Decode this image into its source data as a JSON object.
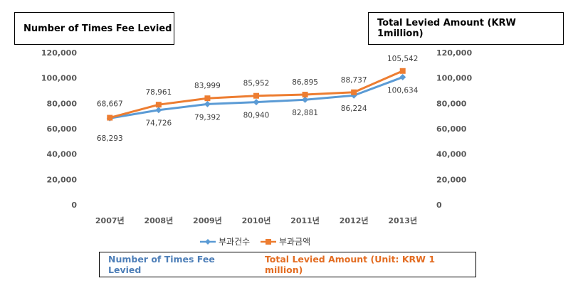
{
  "boxes": {
    "left_axis_title": "Number of Times Fee Levied",
    "right_axis_title": "Total Levied Amount (KRW 1million)",
    "legend_translation_blue": "Number of Times Fee Levied",
    "legend_translation_orange": "Total Levied Amount (Unit: KRW 1 million)"
  },
  "chart_data": {
    "type": "line",
    "categories": [
      "2007년",
      "2008년",
      "2009년",
      "2010년",
      "2011년",
      "2012년",
      "2013년"
    ],
    "series": [
      {
        "name": "부과건수",
        "values": [
          68293,
          74726,
          79392,
          80940,
          82881,
          86224,
          100634
        ],
        "labels": [
          "68,293",
          "74,726",
          "79,392",
          "80,940",
          "82,881",
          "86,224",
          "100,634"
        ],
        "color": "#5b9bd5",
        "marker": "diamond",
        "axis": "left"
      },
      {
        "name": "부과금액",
        "values": [
          68667,
          78961,
          83999,
          85952,
          86895,
          88737,
          105542
        ],
        "labels": [
          "68,667",
          "78,961",
          "83,999",
          "85,952",
          "86,895",
          "88,737",
          "105,542"
        ],
        "color": "#ed7d31",
        "marker": "square",
        "axis": "right"
      }
    ],
    "ylim": [
      0,
      120000
    ],
    "y_ticks": [
      "0",
      "20,000",
      "40,000",
      "60,000",
      "80,000",
      "100,000",
      "120,000"
    ],
    "y2_ticks": [
      "0",
      "20,000",
      "40,000",
      "60,000",
      "80,000",
      "100,000",
      "120,000"
    ],
    "grid": false,
    "legend_position": "bottom"
  }
}
